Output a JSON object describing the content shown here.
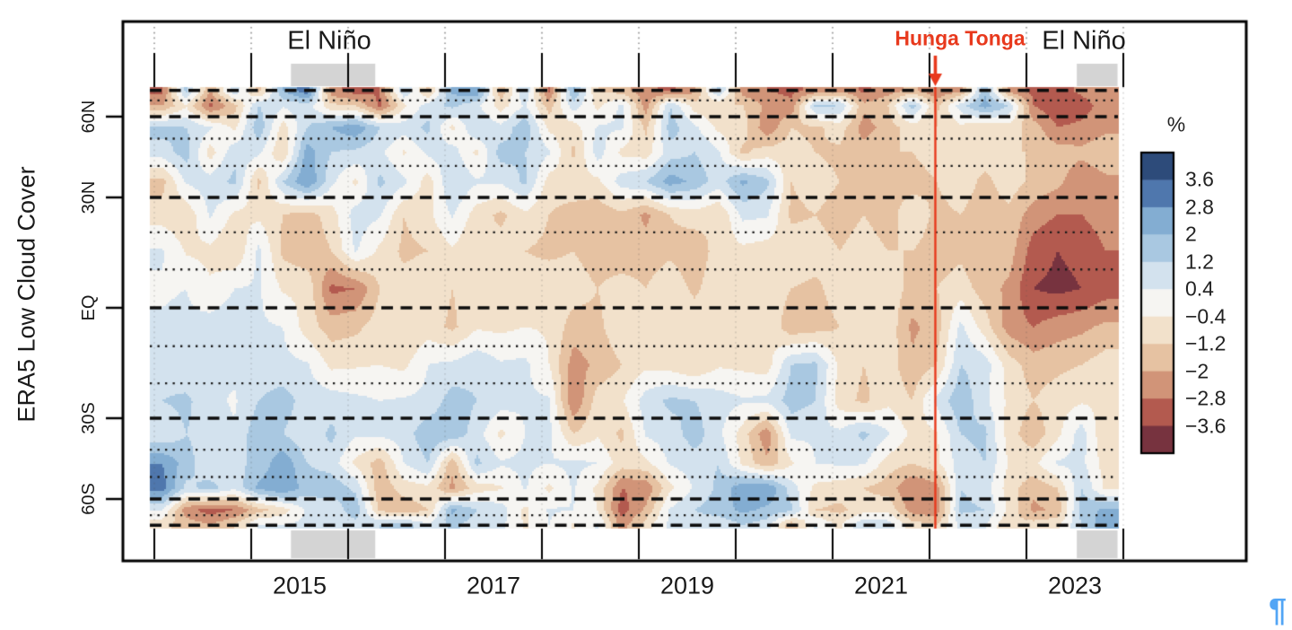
{
  "labels": {
    "el_nino_left": "El Niño",
    "el_nino_right": "El Niño",
    "hunga_tonga": "Hunga Tonga",
    "y_axis_title": "ERA5 Low Cloud Cover",
    "colorbar_unit": "%",
    "pilcrow_mark": "¶"
  },
  "chart_data": {
    "type": "heatmap",
    "title": "",
    "ylabel": "ERA5 Low Cloud Cover",
    "value_unit": "%",
    "x_range_years": [
      2014,
      2024
    ],
    "x_tick_years": [
      "2015",
      "2017",
      "2019",
      "2021",
      "2023"
    ],
    "x_minor_tick_years": [
      2014,
      2015,
      2016,
      2017,
      2018,
      2019,
      2020,
      2021,
      2022,
      2023,
      2024
    ],
    "lat_ticks": [
      {
        "label": "60N",
        "lat": 60
      },
      {
        "label": "30N",
        "lat": 30
      },
      {
        "label": "EQ",
        "lat": 0
      },
      {
        "label": "30S",
        "lat": -30
      },
      {
        "label": "60S",
        "lat": -60
      }
    ],
    "lat_dashed_lines_deg": [
      80,
      60,
      30,
      0,
      -30,
      -60,
      -80
    ],
    "lat_dotted_lines_deg": [
      70,
      50,
      40,
      20,
      10,
      -10,
      -20,
      -40,
      -50,
      -70
    ],
    "annotations": {
      "el_nino_periods": [
        {
          "label": "El Niño",
          "start_year": 2015.41,
          "end_year": 2016.28
        },
        {
          "label": "El Niño",
          "start_year": 2023.52,
          "end_year": 2023.94
        }
      ],
      "eruption": {
        "label": "Hunga Tonga",
        "year": 2022.06,
        "color": "#e8391d"
      }
    },
    "colorbar": {
      "unit": "%",
      "tick_labels_top_to_bottom": [
        "3.6",
        "2.8",
        "2",
        "1.2",
        "0.4",
        "−0.4",
        "−1.2",
        "−2",
        "−2.8",
        "−3.6"
      ],
      "breaks_ascending": [
        -3.6,
        -2.8,
        -2,
        -1.2,
        -0.4,
        0.4,
        1.2,
        2,
        2.8,
        3.6
      ],
      "colors_ascending": [
        "#77333f",
        "#b35a4f",
        "#d19478",
        "#e6c2a2",
        "#f2e1cb",
        "#f6f5f2",
        "#d3e2ee",
        "#a9c8e1",
        "#83add2",
        "#4f77ad",
        "#2d4b7a"
      ]
    },
    "grid": {
      "time_start_year": 2014.0,
      "time_step_years": 0.25,
      "lat_band_edges_deg": [
        90,
        75,
        60,
        50,
        40,
        30,
        20,
        10,
        0,
        -10,
        -20,
        -30,
        -40,
        -50,
        -60,
        -75,
        -90
      ],
      "values_percent_anomaly_north_to_south": [
        [
          -3,
          1.5,
          -2,
          1,
          -1.5,
          2,
          3.4,
          -2.5,
          -3.2,
          -2.8,
          1.2,
          -1.4,
          2.2,
          2.8,
          -1.8,
          1.2,
          -3,
          2.2,
          -1.2,
          -1.6,
          -2.6,
          -3,
          -2.2,
          1.4,
          -2.4,
          -2.8,
          -3,
          -2.6,
          -2.2,
          -3,
          -2.4,
          -1.8,
          -2.8,
          -2.2,
          1.8,
          -2.4,
          -3,
          -3.2,
          -2.6,
          -2.2
        ],
        [
          -2,
          -0.5,
          -3,
          -1.5,
          1.2,
          0.5,
          0.8,
          -1,
          -1.2,
          -3,
          -0.6,
          0.8,
          1.4,
          0.6,
          -0.8,
          0.5,
          -1.6,
          0.8,
          -0.6,
          0.6,
          -2.4,
          1.2,
          -0.8,
          -1.2,
          -1.2,
          -2.2,
          -2.6,
          1.4,
          1.2,
          -1.8,
          -1.2,
          1.6,
          -1.4,
          0.8,
          2.4,
          1.2,
          -2.8,
          -3.4,
          -3.2,
          -2.4
        ],
        [
          1.5,
          1.2,
          0.5,
          -0.6,
          1.8,
          -0.8,
          1.2,
          2,
          2.6,
          1.2,
          0.8,
          1.4,
          -0.6,
          1.2,
          0.6,
          1.8,
          -0.6,
          -0.8,
          0.5,
          0.5,
          -1.4,
          1.6,
          0.6,
          -0.6,
          -0.8,
          -2.6,
          -1.2,
          -1.4,
          -0.8,
          -2.4,
          -1.6,
          -0.8,
          -1.2,
          -0.6,
          -1.2,
          -0.8,
          -1.6,
          -2.8,
          -2.6,
          -2.2
        ],
        [
          0.8,
          1.6,
          -0.8,
          1,
          0.6,
          -1.2,
          2.4,
          1.2,
          1,
          0.6,
          -0.5,
          0.6,
          0.8,
          -0.6,
          1.6,
          1.2,
          0.5,
          -1.4,
          0.8,
          -0.6,
          -0.8,
          0.8,
          1.2,
          0.5,
          -1.4,
          -0.8,
          -0.8,
          -1.2,
          -1.4,
          -1.6,
          -1.2,
          -1.2,
          -0.8,
          -1.2,
          -0.8,
          -1.2,
          -1.2,
          -1.6,
          -1.8,
          -1.4
        ],
        [
          -1.5,
          0.5,
          0.8,
          1.4,
          -1.4,
          1.2,
          2.8,
          0.6,
          -0.6,
          1.4,
          0.6,
          -0.8,
          1.2,
          0.5,
          0.5,
          1.4,
          -0.8,
          -0.6,
          -0.6,
          0.8,
          1.2,
          2.4,
          1.8,
          0.8,
          2.2,
          1.4,
          -1.2,
          -0.8,
          -1.2,
          -1.8,
          -1.4,
          -1.6,
          -1.2,
          -0.8,
          -1.4,
          -0.8,
          -1.4,
          -1.8,
          -2.6,
          -2.2
        ],
        [
          -0.8,
          -1,
          0.5,
          -0.6,
          -0.6,
          -1.2,
          -1.6,
          -0.8,
          0.8,
          0.5,
          -1.2,
          -0.6,
          0.5,
          -0.8,
          -1.4,
          -0.6,
          -1.2,
          -1.6,
          -1.8,
          -1.4,
          -2.2,
          -1.2,
          -0.8,
          -1.2,
          0.6,
          0.5,
          -1.4,
          -1.2,
          -1.6,
          -1.2,
          -1.6,
          -0.6,
          -1.4,
          -1.2,
          -1.6,
          -1.4,
          -2.4,
          -2.8,
          -2.8,
          -2.4
        ],
        [
          0.5,
          -0.5,
          -0.6,
          -1.2,
          0.6,
          -1.4,
          -1.8,
          -1.2,
          0.5,
          -0.6,
          -1.4,
          -1.2,
          -0.5,
          -1.2,
          -0.8,
          -1.2,
          -1.4,
          -1.2,
          -1.6,
          -1.8,
          -1.6,
          -1.4,
          -1.8,
          -0.8,
          -0.6,
          -0.8,
          -0.6,
          -0.8,
          -1.2,
          -0.8,
          -1.2,
          -1.2,
          -1.6,
          -1.4,
          -1.8,
          -1.6,
          -3.2,
          -3.6,
          -3.4,
          -2.8
        ],
        [
          0.3,
          0.4,
          -0.3,
          0.4,
          0.5,
          -0.5,
          -0.6,
          -3,
          -2.8,
          -1.2,
          -0.8,
          -0.5,
          -1.2,
          -0.6,
          -0.5,
          -0.8,
          -0.6,
          -0.8,
          -1.2,
          -0.8,
          -1.2,
          -0.6,
          -1.4,
          -0.6,
          -0.8,
          -0.6,
          -1.2,
          -1.4,
          -0.8,
          -0.6,
          -0.8,
          -1.4,
          -1.2,
          -0.8,
          -1.6,
          -2.2,
          -3.6,
          -3.8,
          -3.6,
          -3.2
        ],
        [
          0.5,
          0.6,
          0.8,
          1,
          0.5,
          0.4,
          -0.8,
          -1.6,
          -1.4,
          -0.8,
          -1.2,
          -0.8,
          -1.4,
          -0.5,
          -0.6,
          -0.4,
          -0.5,
          -1.6,
          -1.4,
          -0.6,
          -0.8,
          -0.5,
          -0.6,
          -0.8,
          -0.5,
          -0.4,
          -1.8,
          -1.6,
          -1.2,
          -0.8,
          -0.6,
          -2.2,
          -1.6,
          0.6,
          -0.8,
          -2.4,
          -2.8,
          -2.4,
          -2.2,
          -1.8
        ],
        [
          0.8,
          0.5,
          0.4,
          0.6,
          0.8,
          0.6,
          0.5,
          -0.6,
          -0.5,
          -0.4,
          -0.6,
          0.4,
          0.6,
          1,
          0.5,
          0.6,
          -0.4,
          -2.4,
          -1.8,
          -1.2,
          -0.6,
          -0.8,
          -1.2,
          -0.5,
          -0.6,
          -0.8,
          1.2,
          1.4,
          -0.6,
          -1.2,
          -0.8,
          -1.8,
          -1.2,
          1.2,
          0.8,
          -0.8,
          -1.6,
          -1.4,
          -1.2,
          -0.8
        ],
        [
          1.2,
          1.4,
          0.6,
          0.3,
          1.2,
          1.6,
          0.8,
          0.8,
          0.6,
          0.4,
          0.5,
          0.6,
          1.6,
          1.2,
          0.8,
          0.5,
          0.5,
          -2.8,
          -0.8,
          -0.5,
          0.8,
          1.4,
          1.2,
          0.8,
          0.5,
          0.6,
          1.6,
          1.2,
          -0.8,
          -1.4,
          -0.6,
          -1.2,
          0.6,
          1.8,
          0.6,
          -0.6,
          -1.2,
          -0.8,
          -0.5,
          -0.6
        ],
        [
          0.5,
          1.2,
          0.8,
          0.5,
          1.8,
          1.2,
          0.6,
          1.4,
          0.5,
          0.6,
          0.8,
          1.8,
          1.8,
          0.8,
          -0.6,
          0.4,
          0.6,
          -1.2,
          -0.5,
          -1.4,
          0.5,
          0.8,
          1.6,
          0.6,
          -0.8,
          -2.6,
          0.6,
          0.5,
          0.6,
          1.4,
          0.5,
          -0.6,
          -0.5,
          1.2,
          1.4,
          -0.8,
          -1.8,
          -0.6,
          0.8,
          -1.2
        ],
        [
          2.8,
          1.6,
          0.5,
          1,
          1.4,
          2.6,
          1.2,
          0.8,
          -0.6,
          -1.6,
          0.4,
          1.2,
          -1.8,
          1.4,
          0.5,
          0.6,
          0.4,
          0.6,
          0.4,
          -0.8,
          -0.6,
          0.5,
          0.8,
          1.2,
          -0.6,
          -1.8,
          -0.5,
          0.4,
          0.5,
          0.5,
          -0.8,
          -1.2,
          -0.6,
          0.8,
          1.2,
          -0.5,
          -0.6,
          0.5,
          0.6,
          -0.8
        ],
        [
          3.2,
          1,
          1.5,
          0.6,
          2.2,
          2.8,
          1.6,
          1.8,
          1,
          -1.8,
          -0.8,
          -0.6,
          -2.2,
          -0.8,
          -0.5,
          0.5,
          -0.6,
          0.5,
          -0.6,
          -2.8,
          -2.6,
          -0.6,
          0.5,
          1.4,
          2.6,
          2.8,
          0.8,
          -0.6,
          -0.8,
          -1.2,
          -1.6,
          -2.8,
          -2.4,
          1.2,
          0.8,
          -0.8,
          -1.8,
          -1.2,
          1.2,
          -0.6
        ],
        [
          0.5,
          -2.5,
          -3.2,
          -2.8,
          -1.5,
          -0.8,
          0.5,
          0.6,
          1.8,
          -1.4,
          -1.8,
          -1.2,
          2.2,
          1.2,
          0.8,
          -0.6,
          0.5,
          0.4,
          -0.4,
          -3.2,
          -1.8,
          0.5,
          1.2,
          1.6,
          2.2,
          1.8,
          1.4,
          -1.2,
          -1.4,
          -0.8,
          -0.6,
          -2.4,
          -2.6,
          1.4,
          1.2,
          -0.6,
          -2.2,
          -1.8,
          1.6,
          2.2
        ],
        [
          -1,
          -1.5,
          -2,
          -1.2,
          0.5,
          0.4,
          0.6,
          0.5,
          0.8,
          1.2,
          1.6,
          0.5,
          1.4,
          0.8,
          0.6,
          -0.5,
          0.4,
          -0.5,
          0.5,
          -2.4,
          -0.8,
          0.6,
          0.8,
          0.6,
          1.2,
          0.8,
          -1.8,
          0.5,
          -0.6,
          1.2,
          0.8,
          -0.8,
          -1.2,
          0.6,
          0.5,
          -1.2,
          -0.8,
          -0.6,
          1.2,
          2.6
        ]
      ]
    },
    "style_colors": {
      "eruption_line": "#e8391d",
      "el_nino_band_gray": "#d4d4d4",
      "frame_black": "#000000",
      "pilcrow_blue": "#52a5f5"
    }
  }
}
